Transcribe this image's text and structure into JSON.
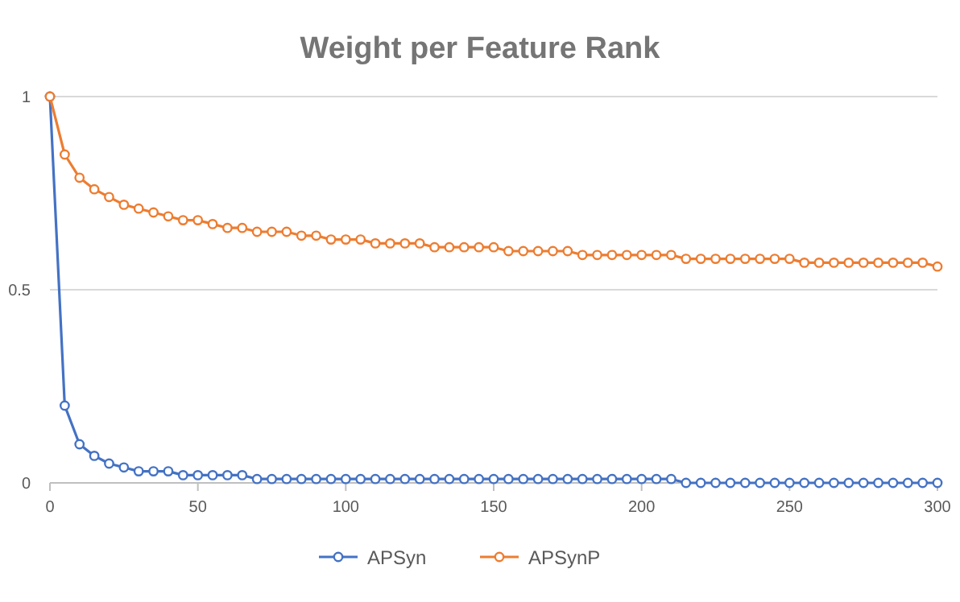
{
  "chart_data": {
    "type": "line",
    "title": "Weight per Feature Rank",
    "x": [
      0,
      5,
      10,
      15,
      20,
      25,
      30,
      35,
      40,
      45,
      50,
      55,
      60,
      65,
      70,
      75,
      80,
      85,
      90,
      95,
      100,
      105,
      110,
      115,
      120,
      125,
      130,
      135,
      140,
      145,
      150,
      155,
      160,
      165,
      170,
      175,
      180,
      185,
      190,
      195,
      200,
      205,
      210,
      215,
      220,
      225,
      230,
      235,
      240,
      245,
      250,
      255,
      260,
      265,
      270,
      275,
      280,
      285,
      290,
      295,
      300
    ],
    "series": [
      {
        "name": "APSyn",
        "color": "#4472c4",
        "values": [
          1,
          0.2,
          0.1,
          0.07,
          0.05,
          0.04,
          0.03,
          0.03,
          0.03,
          0.02,
          0.02,
          0.02,
          0.02,
          0.02,
          0.01,
          0.01,
          0.01,
          0.01,
          0.01,
          0.01,
          0.01,
          0.01,
          0.01,
          0.01,
          0.01,
          0.01,
          0.01,
          0.01,
          0.01,
          0.01,
          0.01,
          0.01,
          0.01,
          0.01,
          0.01,
          0.01,
          0.01,
          0.01,
          0.01,
          0.01,
          0.01,
          0.01,
          0.01,
          0,
          0,
          0,
          0,
          0,
          0,
          0,
          0,
          0,
          0,
          0,
          0,
          0,
          0,
          0,
          0,
          0,
          0
        ]
      },
      {
        "name": "APSynP",
        "color": "#ed7d31",
        "values": [
          1,
          0.85,
          0.79,
          0.76,
          0.74,
          0.72,
          0.71,
          0.7,
          0.69,
          0.68,
          0.68,
          0.67,
          0.66,
          0.66,
          0.65,
          0.65,
          0.65,
          0.64,
          0.64,
          0.63,
          0.63,
          0.63,
          0.62,
          0.62,
          0.62,
          0.62,
          0.61,
          0.61,
          0.61,
          0.61,
          0.61,
          0.6,
          0.6,
          0.6,
          0.6,
          0.6,
          0.59,
          0.59,
          0.59,
          0.59,
          0.59,
          0.59,
          0.59,
          0.58,
          0.58,
          0.58,
          0.58,
          0.58,
          0.58,
          0.58,
          0.58,
          0.57,
          0.57,
          0.57,
          0.57,
          0.57,
          0.57,
          0.57,
          0.57,
          0.57,
          0.56
        ]
      }
    ],
    "xlim": [
      0,
      300
    ],
    "xticks": [
      0,
      50,
      100,
      150,
      200,
      250,
      300
    ],
    "ylim": [
      0,
      1
    ],
    "yticks": [
      0,
      0.5,
      1
    ],
    "grid": "y",
    "legend": "bottom",
    "marker": "circle",
    "line_style": "solid"
  }
}
